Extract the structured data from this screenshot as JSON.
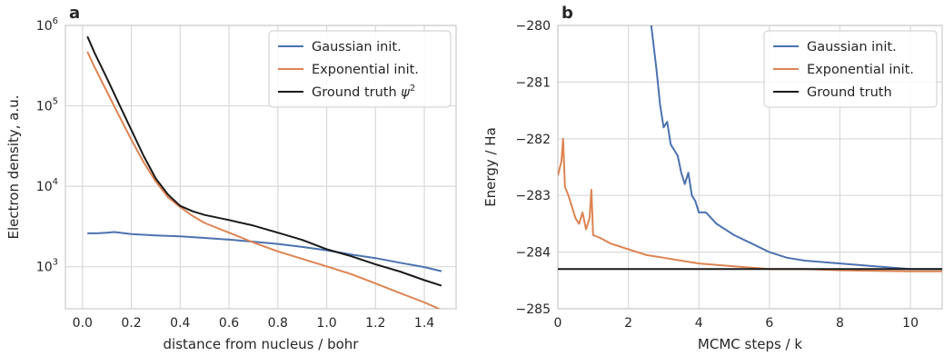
{
  "chart_data": [
    {
      "type": "line",
      "panel_label": "a",
      "xlabel": "distance from nucleus / bohr",
      "ylabel": "Electron density, a.u.",
      "yscale": "log",
      "xlim": [
        -0.07,
        1.53
      ],
      "ylim": [
        300,
        1000000
      ],
      "xticks": [
        0.0,
        0.2,
        0.4,
        0.6,
        0.8,
        1.0,
        1.2,
        1.4
      ],
      "xtick_labels": [
        "0.0",
        "0.2",
        "0.4",
        "0.6",
        "0.8",
        "1.0",
        "1.2",
        "1.4"
      ],
      "yticks": [
        1000,
        10000,
        100000,
        1000000
      ],
      "ytick_labels": [
        {
          "base": "10",
          "exp": "3"
        },
        {
          "base": "10",
          "exp": "4"
        },
        {
          "base": "10",
          "exp": "5"
        },
        {
          "base": "10",
          "exp": "6"
        }
      ],
      "legend_position": "top-right",
      "grid": true,
      "series": [
        {
          "name": "Gaussian init.",
          "color": "#4c72b0",
          "x": [
            0.02,
            0.06,
            0.1,
            0.13,
            0.2,
            0.3,
            0.4,
            0.5,
            0.6,
            0.7,
            0.8,
            0.9,
            1.0,
            1.1,
            1.2,
            1.3,
            1.4,
            1.47
          ],
          "y": [
            2600,
            2600,
            2650,
            2700,
            2550,
            2450,
            2380,
            2280,
            2170,
            2050,
            1920,
            1760,
            1600,
            1420,
            1280,
            1120,
            990,
            880
          ]
        },
        {
          "name": "Exponential init.",
          "color": "#dd8452",
          "x": [
            0.02,
            0.05,
            0.1,
            0.15,
            0.2,
            0.25,
            0.3,
            0.35,
            0.4,
            0.45,
            0.5,
            0.6,
            0.7,
            0.8,
            0.9,
            1.0,
            1.1,
            1.2,
            1.3,
            1.4,
            1.47
          ],
          "y": [
            470000,
            300000,
            150000,
            75000,
            38000,
            20000,
            11500,
            7300,
            5500,
            4300,
            3500,
            2650,
            2000,
            1550,
            1250,
            1010,
            810,
            620,
            470,
            360,
            290
          ]
        },
        {
          "name": "Ground truth ψ²",
          "legend_label": {
            "text": "Ground truth ",
            "symbol": "ψ",
            "exp": "2"
          },
          "color": "#1a1a1a",
          "x": [
            0.02,
            0.05,
            0.1,
            0.15,
            0.2,
            0.25,
            0.3,
            0.35,
            0.4,
            0.45,
            0.5,
            0.6,
            0.7,
            0.8,
            0.9,
            1.0,
            1.1,
            1.2,
            1.3,
            1.4,
            1.47
          ],
          "y": [
            730000,
            450000,
            220000,
            105000,
            50000,
            24000,
            12500,
            7900,
            5700,
            4900,
            4400,
            3800,
            3250,
            2650,
            2150,
            1650,
            1350,
            1070,
            870,
            680,
            580
          ]
        }
      ]
    },
    {
      "type": "line",
      "panel_label": "b",
      "xlabel": "MCMC steps / k",
      "ylabel": "Energy / Ha",
      "xlim": [
        0,
        10.9
      ],
      "ylim": [
        -285,
        -280
      ],
      "xticks": [
        0,
        2,
        4,
        6,
        8,
        10
      ],
      "xtick_labels": [
        "0",
        "2",
        "4",
        "6",
        "8",
        "10"
      ],
      "yticks": [
        -285,
        -284,
        -283,
        -282,
        -281,
        -280
      ],
      "ytick_labels": [
        "−285",
        "−284",
        "−283",
        "−282",
        "−281",
        "−280"
      ],
      "legend_position": "top-right",
      "grid": true,
      "series": [
        {
          "name": "Gaussian init.",
          "color": "#4c72b0",
          "x": [
            2.65,
            2.8,
            2.9,
            3.0,
            3.1,
            3.2,
            3.3,
            3.4,
            3.5,
            3.6,
            3.7,
            3.8,
            3.9,
            4.0,
            4.2,
            4.5,
            5.0,
            5.5,
            6.0,
            6.5,
            7.0,
            8.0,
            9.0,
            10.0,
            10.9
          ],
          "y": [
            -280.0,
            -280.8,
            -281.4,
            -281.8,
            -281.7,
            -282.1,
            -282.2,
            -282.3,
            -282.6,
            -282.8,
            -282.6,
            -283.0,
            -283.1,
            -283.3,
            -283.3,
            -283.5,
            -283.7,
            -283.85,
            -284.0,
            -284.1,
            -284.15,
            -284.2,
            -284.25,
            -284.3,
            -284.3
          ]
        },
        {
          "name": "Exponential init.",
          "color": "#dd8452",
          "x": [
            0.0,
            0.1,
            0.15,
            0.2,
            0.3,
            0.4,
            0.5,
            0.6,
            0.7,
            0.8,
            0.9,
            0.95,
            1.0,
            1.2,
            1.5,
            2.0,
            2.5,
            3.0,
            3.5,
            4.0,
            5.0,
            6.0,
            7.0,
            8.0,
            9.0,
            10.0,
            10.9
          ],
          "y": [
            -282.65,
            -282.4,
            -282.0,
            -282.85,
            -283.0,
            -283.2,
            -283.4,
            -283.5,
            -283.3,
            -283.6,
            -283.4,
            -282.9,
            -283.7,
            -283.75,
            -283.85,
            -283.95,
            -284.05,
            -284.1,
            -284.15,
            -284.2,
            -284.25,
            -284.3,
            -284.3,
            -284.32,
            -284.33,
            -284.34,
            -284.34
          ]
        },
        {
          "name": "Ground truth",
          "color": "#1a1a1a",
          "x": [
            0.0,
            10.9
          ],
          "y": [
            -284.3,
            -284.3
          ]
        }
      ]
    }
  ]
}
